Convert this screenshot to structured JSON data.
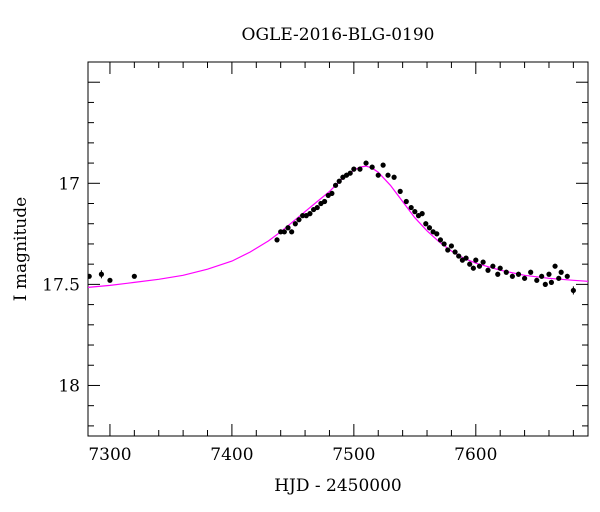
{
  "chart_data": {
    "type": "scatter",
    "title": "OGLE-2016-BLG-0190",
    "xlabel": "HJD - 2450000",
    "ylabel": "I magnitude",
    "xlim": [
      7282,
      7692
    ],
    "ylim": [
      18.25,
      16.4
    ],
    "y_inverted": true,
    "x_ticks": [
      7300,
      7400,
      7500,
      7600
    ],
    "y_ticks": [
      17,
      17.5,
      18
    ],
    "y_tick_labels": [
      "17",
      "17.5",
      "18"
    ],
    "grid": false,
    "colors": {
      "model": "#ff00ff",
      "points": "#000000"
    },
    "series": [
      {
        "kind": "points_with_errorbars",
        "x": [
          7283,
          7293,
          7300,
          7320,
          7437,
          7440,
          7443,
          7446,
          7449,
          7452,
          7455,
          7458,
          7461,
          7464,
          7467,
          7470,
          7473,
          7476,
          7479,
          7482,
          7485,
          7488,
          7491,
          7494,
          7497,
          7500,
          7505,
          7510,
          7515,
          7520,
          7524,
          7528,
          7533,
          7538,
          7543,
          7547,
          7550,
          7553,
          7556,
          7559,
          7562,
          7565,
          7568,
          7571,
          7574,
          7577,
          7580,
          7583,
          7586,
          7589,
          7592,
          7595,
          7598,
          7600,
          7603,
          7606,
          7610,
          7614,
          7618,
          7620,
          7625,
          7630,
          7635,
          7640,
          7645,
          7650,
          7654,
          7657,
          7660,
          7662,
          7665,
          7668,
          7670,
          7675,
          7680
        ],
        "y": [
          17.46,
          17.45,
          17.48,
          17.46,
          17.28,
          17.24,
          17.24,
          17.22,
          17.24,
          17.2,
          17.18,
          17.16,
          17.16,
          17.15,
          17.13,
          17.12,
          17.1,
          17.09,
          17.06,
          17.05,
          17.01,
          16.99,
          16.97,
          16.96,
          16.95,
          16.93,
          16.93,
          16.9,
          16.92,
          16.96,
          16.91,
          16.96,
          16.97,
          17.04,
          17.09,
          17.12,
          17.14,
          17.16,
          17.15,
          17.2,
          17.22,
          17.24,
          17.25,
          17.28,
          17.3,
          17.33,
          17.31,
          17.34,
          17.36,
          17.38,
          17.37,
          17.4,
          17.42,
          17.38,
          17.41,
          17.39,
          17.43,
          17.41,
          17.45,
          17.42,
          17.44,
          17.46,
          17.45,
          17.47,
          17.44,
          17.48,
          17.46,
          17.5,
          17.45,
          17.49,
          17.41,
          17.47,
          17.44,
          17.46,
          17.53
        ],
        "err": [
          0.01,
          0.02,
          0.01,
          0.01,
          0.012,
          0.012,
          0.012,
          0.012,
          0.012,
          0.012,
          0.012,
          0.012,
          0.012,
          0.012,
          0.012,
          0.012,
          0.012,
          0.012,
          0.012,
          0.012,
          0.012,
          0.012,
          0.012,
          0.012,
          0.012,
          0.012,
          0.012,
          0.012,
          0.012,
          0.012,
          0.012,
          0.012,
          0.012,
          0.012,
          0.012,
          0.012,
          0.012,
          0.012,
          0.012,
          0.012,
          0.012,
          0.012,
          0.012,
          0.012,
          0.012,
          0.012,
          0.012,
          0.012,
          0.012,
          0.012,
          0.012,
          0.012,
          0.012,
          0.012,
          0.012,
          0.012,
          0.012,
          0.012,
          0.012,
          0.012,
          0.012,
          0.012,
          0.012,
          0.012,
          0.012,
          0.012,
          0.012,
          0.012,
          0.012,
          0.012,
          0.012,
          0.012,
          0.012,
          0.012,
          0.02
        ]
      },
      {
        "kind": "model_curve",
        "x": [
          7282,
          7300,
          7320,
          7340,
          7360,
          7380,
          7400,
          7415,
          7430,
          7440,
          7450,
          7460,
          7470,
          7480,
          7490,
          7500,
          7505,
          7510,
          7515,
          7520,
          7530,
          7540,
          7550,
          7560,
          7570,
          7580,
          7590,
          7600,
          7620,
          7640,
          7660,
          7680,
          7692
        ],
        "y": [
          17.515,
          17.505,
          17.49,
          17.475,
          17.455,
          17.425,
          17.385,
          17.34,
          17.285,
          17.24,
          17.19,
          17.14,
          17.09,
          17.04,
          16.98,
          16.935,
          16.92,
          16.915,
          16.925,
          16.945,
          17.01,
          17.09,
          17.17,
          17.235,
          17.29,
          17.335,
          17.37,
          17.395,
          17.43,
          17.455,
          17.47,
          17.48,
          17.485
        ]
      }
    ]
  }
}
